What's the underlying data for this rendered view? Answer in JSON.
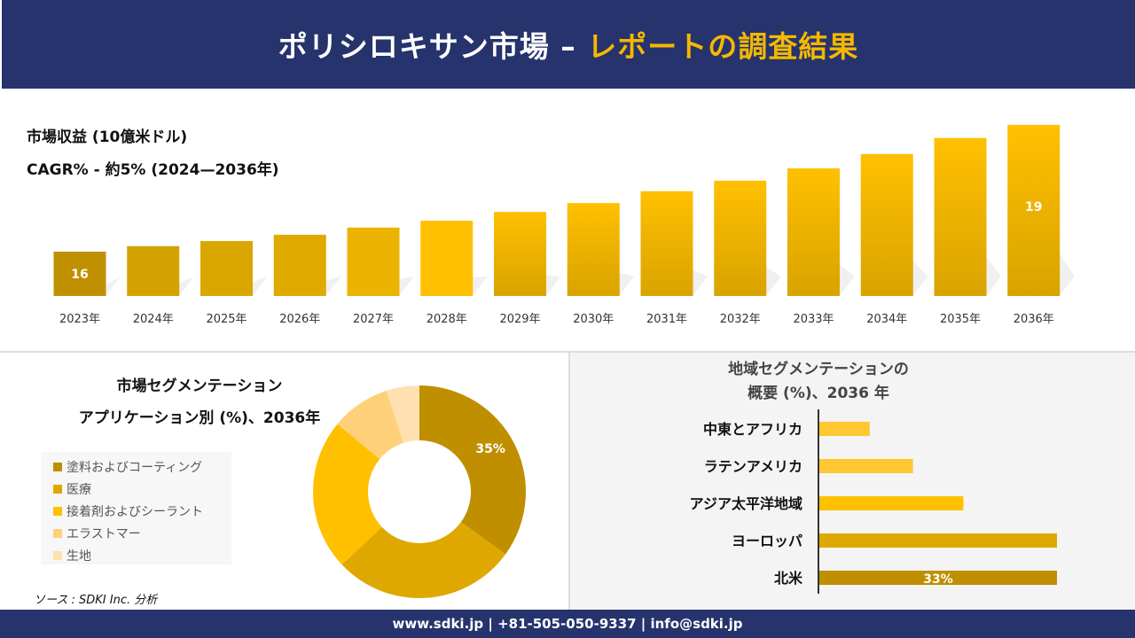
{
  "header": {
    "title_main": "ポリシロキサン市場 –",
    "title_accent": "レポートの調査結果"
  },
  "revenue_label": "市場収益 (10億米ドル)",
  "cagr_label": "CAGR% - 約5% (2024—2036年)",
  "colors": {
    "navy": "#26336c",
    "gold": "#ffc000"
  },
  "chart_data": [
    {
      "type": "bar",
      "categories": [
        "2023年",
        "2024年",
        "2025年",
        "2026年",
        "2027年",
        "2028年",
        "2029年",
        "2030年",
        "2031年",
        "2032年",
        "2033年",
        "2034年",
        "2035年",
        "2036年"
      ],
      "values": [
        16,
        16.13,
        16.25,
        16.4,
        16.57,
        16.73,
        16.94,
        17.15,
        17.43,
        17.68,
        17.97,
        18.31,
        18.69,
        19
      ],
      "data_labels": {
        "0": "16",
        "13": "19"
      },
      "ylabel": "市場収益 (10億米ドル)"
    },
    {
      "type": "pie",
      "title": "市場セグメンテーション アプリケーション別 (%)、2036年",
      "categories": [
        "塗料およびコーティング",
        "医療",
        "接着剤およびシーラント",
        "エラストマー",
        "生地"
      ],
      "values": [
        35,
        28,
        23,
        9,
        5
      ],
      "data_labels": {
        "0": "35%"
      },
      "colors": [
        "#bf8f00",
        "#dfa800",
        "#ffc000",
        "#ffd07a",
        "#ffe0b0"
      ],
      "legend": "left"
    },
    {
      "type": "bar",
      "orientation": "horizontal",
      "title": "地域セグメンテーションの 概要 (%)、2036 年",
      "categories": [
        "中東とアフリカ",
        "ラテンアメリカ",
        "アジア太平洋地域",
        "ヨーロッパ",
        "北米"
      ],
      "values": [
        7,
        13,
        20,
        33,
        33
      ],
      "data_labels": {
        "4": "33%"
      },
      "colors": [
        "#ffc832",
        "#ffc832",
        "#ffc000",
        "#dfa800",
        "#bf8f00"
      ]
    }
  ],
  "segment": {
    "title_line1": "市場セグメンテーション",
    "title_line2": "アプリケーション別 (%)、2036年"
  },
  "region": {
    "title_line1": "地域セグメンテーションの",
    "title_line2": "概要 (%)、2036 年"
  },
  "source": "ソース : SDKI Inc. 分析",
  "footer": "www.sdki.jp | +81-505-050-9337 | info@sdki.jp"
}
